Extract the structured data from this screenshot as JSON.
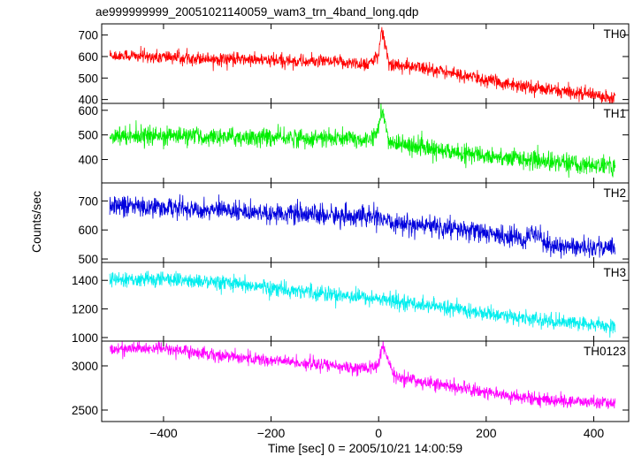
{
  "chart_data": {
    "type": "line",
    "title": "ae999999999_20051021140059_wam3_trn_4band_long.qdp",
    "xlabel": "Time [sec] 0 = 2005/10/21 14:00:59",
    "ylabel": "Counts/sec",
    "xlim": [
      -515,
      465
    ],
    "xticks": [
      -400,
      -200,
      0,
      200,
      400
    ],
    "xtick_labels": [
      "−400",
      "−200",
      "0",
      "200",
      "400"
    ],
    "x_range": [
      -500,
      440
    ],
    "panels": [
      {
        "name": "TH0",
        "color": "#ff0000",
        "ylim": [
          382,
          752
        ],
        "yticks": [
          400,
          500,
          600,
          700
        ],
        "noise": 24,
        "trend": [
          [
            -500,
            605
          ],
          [
            -300,
            590
          ],
          [
            -200,
            582
          ],
          [
            -100,
            575
          ],
          [
            -20,
            566
          ],
          [
            0,
            600
          ],
          [
            5,
            720
          ],
          [
            10,
            680
          ],
          [
            20,
            565
          ],
          [
            100,
            540
          ],
          [
            200,
            490
          ],
          [
            300,
            450
          ],
          [
            440,
            410
          ]
        ]
      },
      {
        "name": "TH1",
        "color": "#00ee00",
        "ylim": [
          305,
          628
        ],
        "yticks": [
          400,
          500,
          600
        ],
        "noise": 28,
        "trend": [
          [
            -500,
            500
          ],
          [
            -300,
            492
          ],
          [
            -200,
            490
          ],
          [
            -100,
            485
          ],
          [
            -20,
            480
          ],
          [
            0,
            520
          ],
          [
            5,
            600
          ],
          [
            12,
            545
          ],
          [
            20,
            470
          ],
          [
            100,
            440
          ],
          [
            200,
            415
          ],
          [
            300,
            395
          ],
          [
            440,
            370
          ]
        ]
      },
      {
        "name": "TH2",
        "color": "#0000dd",
        "ylim": [
          488,
          762
        ],
        "yticks": [
          500,
          600,
          700
        ],
        "noise": 26,
        "trend": [
          [
            -500,
            685
          ],
          [
            -300,
            670
          ],
          [
            -200,
            660
          ],
          [
            -100,
            650
          ],
          [
            0,
            645
          ],
          [
            10,
            625
          ],
          [
            100,
            612
          ],
          [
            200,
            590
          ],
          [
            270,
            565
          ],
          [
            290,
            595
          ],
          [
            320,
            545
          ],
          [
            440,
            540
          ]
        ]
      },
      {
        "name": "TH3",
        "color": "#00eeee",
        "ylim": [
          975,
          1525
        ],
        "yticks": [
          1000,
          1200,
          1400
        ],
        "noise": 40,
        "trend": [
          [
            -500,
            1400
          ],
          [
            -400,
            1410
          ],
          [
            -300,
            1380
          ],
          [
            -200,
            1350
          ],
          [
            -100,
            1310
          ],
          [
            0,
            1270
          ],
          [
            100,
            1220
          ],
          [
            200,
            1170
          ],
          [
            300,
            1120
          ],
          [
            440,
            1080
          ]
        ]
      },
      {
        "name": "TH0123",
        "color": "#ff00ff",
        "ylim": [
          2370,
          3280
        ],
        "yticks": [
          2500,
          3000
        ],
        "noise": 55,
        "trend": [
          [
            -500,
            3190
          ],
          [
            -400,
            3200
          ],
          [
            -300,
            3120
          ],
          [
            -200,
            3060
          ],
          [
            -100,
            3010
          ],
          [
            -20,
            2960
          ],
          [
            0,
            3020
          ],
          [
            8,
            3240
          ],
          [
            15,
            3100
          ],
          [
            30,
            2880
          ],
          [
            100,
            2800
          ],
          [
            200,
            2700
          ],
          [
            300,
            2620
          ],
          [
            440,
            2570
          ]
        ]
      }
    ]
  }
}
